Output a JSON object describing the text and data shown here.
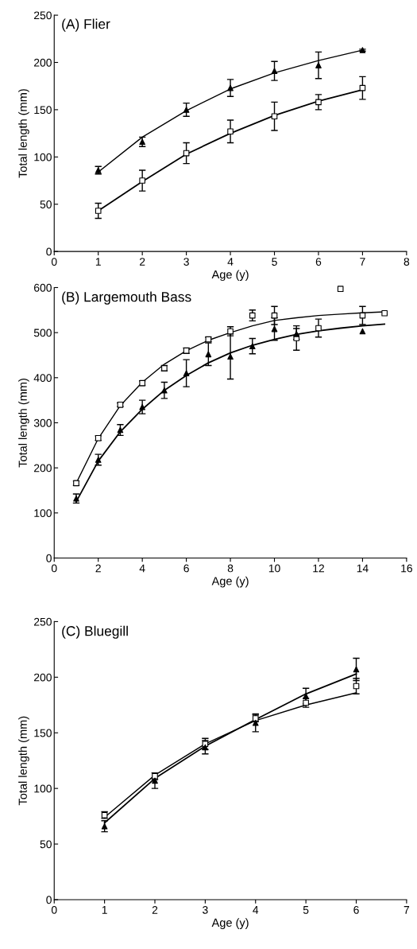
{
  "chart_data": [
    {
      "type": "scatter",
      "title": "(A) Flier",
      "xlabel": "Age (y)",
      "ylabel": "Total length (mm)",
      "xlim": [
        0,
        8
      ],
      "xticks": [
        0,
        1,
        2,
        3,
        4,
        5,
        6,
        7,
        8
      ],
      "ylim": [
        0,
        250
      ],
      "yticks": [
        0,
        50,
        100,
        150,
        200,
        250
      ],
      "grid": false,
      "legend": false,
      "series": [
        {
          "type": "scatter",
          "marker": "triangle",
          "color": "#000000",
          "x": [
            1,
            2,
            3,
            4,
            5,
            6,
            7
          ],
          "values": [
            86,
            116,
            150,
            173,
            191,
            197,
            213
          ],
          "errors": [
            4,
            5,
            7,
            9,
            10,
            14,
            1
          ]
        },
        {
          "type": "scatter",
          "marker": "square",
          "color": "#000000",
          "x": [
            1,
            2,
            3,
            4,
            5,
            6,
            7
          ],
          "values": [
            43,
            75,
            104,
            127,
            143,
            158,
            173
          ],
          "errors": [
            8,
            11,
            11,
            12,
            15,
            8,
            12
          ]
        },
        {
          "type": "line",
          "marker": "none",
          "color": "#000000",
          "x": [
            1,
            2,
            3,
            4,
            5,
            6,
            7
          ],
          "values": [
            84,
            121,
            149,
            172,
            189,
            202,
            213
          ]
        },
        {
          "type": "line",
          "marker": "none",
          "color": "#000000",
          "x": [
            1,
            2,
            3,
            4,
            5,
            6,
            7
          ],
          "values": [
            43,
            74,
            103,
            125,
            144,
            159,
            171
          ]
        }
      ]
    },
    {
      "type": "scatter",
      "title": "(B) Largemouth Bass",
      "xlabel": "Age (y)",
      "ylabel": "Total length (mm)",
      "xlim": [
        0,
        16
      ],
      "xticks": [
        0,
        2,
        4,
        6,
        8,
        10,
        12,
        14,
        16
      ],
      "ylim": [
        0,
        600
      ],
      "yticks": [
        0,
        100,
        200,
        300,
        400,
        500,
        600
      ],
      "grid": false,
      "legend": false,
      "series": [
        {
          "type": "scatter",
          "marker": "square",
          "color": "#000000",
          "x": [
            1,
            2,
            3,
            4,
            5,
            6,
            7,
            8,
            9,
            10,
            11,
            12,
            13,
            14,
            15
          ],
          "values": [
            166,
            266,
            340,
            388,
            421,
            460,
            485,
            503,
            538,
            538,
            488,
            510,
            597,
            538,
            543
          ],
          "errors": [
            5,
            5,
            4,
            5,
            6,
            6,
            5,
            10,
            12,
            20,
            27,
            20,
            null,
            20,
            null
          ]
        },
        {
          "type": "scatter",
          "marker": "triangle",
          "color": "#000000",
          "x": [
            1,
            2,
            3,
            4,
            5,
            6,
            7,
            8,
            9,
            10,
            11,
            14
          ],
          "values": [
            132,
            218,
            284,
            335,
            372,
            410,
            452,
            447,
            470,
            508,
            497,
            503
          ],
          "errors": [
            10,
            12,
            12,
            15,
            18,
            30,
            25,
            50,
            17,
            25,
            12,
            null
          ]
        },
        {
          "type": "line",
          "marker": "none",
          "color": "#000000",
          "x": [
            1,
            2,
            3,
            4,
            5,
            6,
            7,
            8,
            9,
            10,
            11,
            12,
            13,
            14,
            15
          ],
          "values": [
            166,
            265,
            338,
            390,
            430,
            460,
            483,
            500,
            515,
            527,
            533,
            538,
            541,
            544,
            546
          ]
        },
        {
          "type": "line",
          "marker": "none",
          "color": "#000000",
          "x": [
            1,
            2,
            3,
            4,
            5,
            6,
            7,
            8,
            9,
            10,
            11,
            12,
            13,
            14,
            15
          ],
          "values": [
            125,
            215,
            280,
            330,
            372,
            405,
            433,
            455,
            472,
            485,
            496,
            504,
            510,
            515,
            519
          ]
        }
      ]
    },
    {
      "type": "scatter",
      "title": "(C) Bluegill",
      "xlabel": "Age (y)",
      "ylabel": "Total length (mm)",
      "xlim": [
        0,
        7
      ],
      "xticks": [
        0,
        1,
        2,
        3,
        4,
        5,
        6,
        7
      ],
      "ylim": [
        0,
        250
      ],
      "yticks": [
        0,
        50,
        100,
        150,
        200,
        250
      ],
      "grid": false,
      "legend": false,
      "series": [
        {
          "type": "scatter",
          "marker": "square",
          "color": "#000000",
          "x": [
            1,
            2,
            3,
            4,
            5,
            6
          ],
          "values": [
            76,
            111,
            140,
            163,
            177,
            192
          ],
          "errors": [
            3,
            3,
            5,
            3,
            4,
            7
          ]
        },
        {
          "type": "scatter",
          "marker": "triangle",
          "color": "#000000",
          "x": [
            1,
            2,
            3,
            4,
            5,
            6
          ],
          "values": [
            66,
            107,
            137,
            159,
            183,
            207
          ],
          "errors": [
            5,
            7,
            6,
            8,
            7,
            10
          ]
        },
        {
          "type": "line",
          "marker": "none",
          "color": "#000000",
          "x": [
            1,
            2,
            3,
            4,
            5,
            6
          ],
          "values": [
            74,
            112,
            140,
            161,
            175,
            186
          ]
        },
        {
          "type": "line",
          "marker": "none",
          "color": "#000000",
          "x": [
            1,
            2,
            3,
            4,
            5,
            6
          ],
          "values": [
            69,
            109,
            138,
            162,
            185,
            203
          ]
        }
      ]
    }
  ]
}
